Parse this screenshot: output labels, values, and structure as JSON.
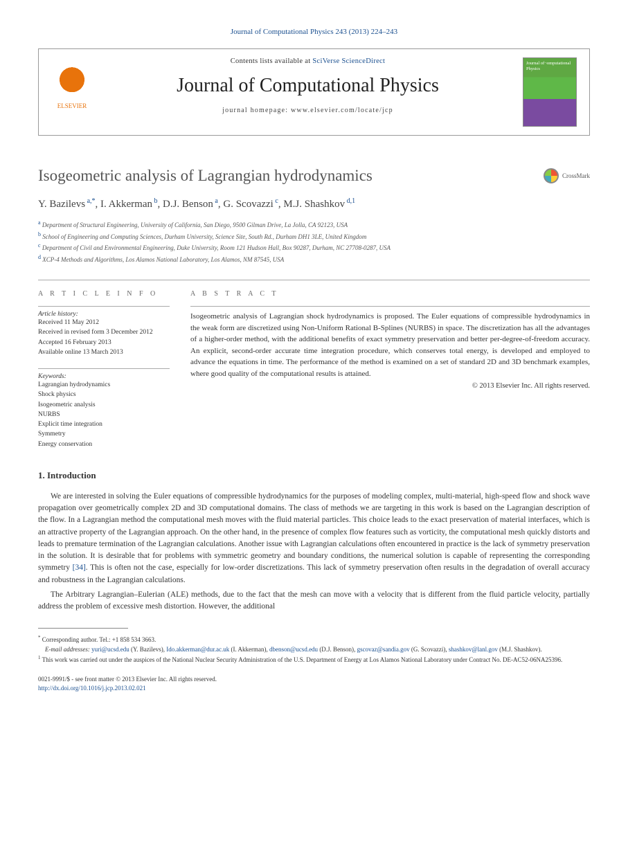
{
  "journal_ref": "Journal of Computational Physics 243 (2013) 224–243",
  "header": {
    "contents_prefix": "Contents lists available at ",
    "contents_link": "SciVerse ScienceDirect",
    "journal_title": "Journal of Computational Physics",
    "homepage_prefix": "journal homepage: ",
    "homepage_url": "www.elsevier.com/locate/jcp",
    "elsevier_label": "ELSEVIER"
  },
  "title": "Isogeometric analysis of Lagrangian hydrodynamics",
  "crossmark_label": "CrossMark",
  "authors_html": "Y. Bazilevs",
  "authors": [
    {
      "name": "Y. Bazilevs",
      "sup": "a,*"
    },
    {
      "name": "I. Akkerman",
      "sup": "b"
    },
    {
      "name": "D.J. Benson",
      "sup": "a"
    },
    {
      "name": "G. Scovazzi",
      "sup": "c"
    },
    {
      "name": "M.J. Shashkov",
      "sup": "d,1"
    }
  ],
  "affiliations": [
    {
      "sup": "a",
      "text": "Department of Structural Engineering, University of California, San Diego, 9500 Gilman Drive, La Jolla, CA 92123, USA"
    },
    {
      "sup": "b",
      "text": "School of Engineering and Computing Sciences, Durham University, Science Site, South Rd., Durham DH1 3LE, United Kingdom"
    },
    {
      "sup": "c",
      "text": "Department of Civil and Environmental Engineering, Duke University, Room 121 Hudson Hall, Box 90287, Durham, NC 27708-0287, USA"
    },
    {
      "sup": "d",
      "text": "XCP-4 Methods and Algorithms, Los Alamos National Laboratory, Los Alamos, NM 87545, USA"
    }
  ],
  "info": {
    "heading": "a r t i c l e   i n f o",
    "history_label": "Article history:",
    "history": [
      "Received 11 May 2012",
      "Received in revised form 3 December 2012",
      "Accepted 16 February 2013",
      "Available online 13 March 2013"
    ],
    "keywords_label": "Keywords:",
    "keywords": [
      "Lagrangian hydrodynamics",
      "Shock physics",
      "Isogeometric analysis",
      "NURBS",
      "Explicit time integration",
      "Symmetry",
      "Energy conservation"
    ]
  },
  "abstract": {
    "heading": "a b s t r a c t",
    "text": "Isogeometric analysis of Lagrangian shock hydrodynamics is proposed. The Euler equations of compressible hydrodynamics in the weak form are discretized using Non-Uniform Rational B-Splines (NURBS) in space. The discretization has all the advantages of a higher-order method, with the additional benefits of exact symmetry preservation and better per-degree-of-freedom accuracy. An explicit, second-order accurate time integration procedure, which conserves total energy, is developed and employed to advance the equations in time. The performance of the method is examined on a set of standard 2D and 3D benchmark examples, where good quality of the computational results is attained.",
    "copyright": "© 2013 Elsevier Inc. All rights reserved."
  },
  "intro": {
    "heading": "1. Introduction",
    "p1": "We are interested in solving the Euler equations of compressible hydrodynamics for the purposes of modeling complex, multi-material, high-speed flow and shock wave propagation over geometrically complex 2D and 3D computational domains. The class of methods we are targeting in this work is based on the Lagrangian description of the flow. In a Lagrangian method the computational mesh moves with the fluid material particles. This choice leads to the exact preservation of material interfaces, which is an attractive property of the Lagrangian approach. On the other hand, in the presence of complex flow features such as vorticity, the computational mesh quickly distorts and leads to premature termination of the Lagrangian calculations. Another issue with Lagrangian calculations often encountered in practice is the lack of symmetry preservation in the solution. It is desirable that for problems with symmetric geometry and boundary conditions, the numerical solution is capable of representing the corresponding symmetry ",
    "p1_ref": "[34]",
    "p1_tail": ". This is often not the case, especially for low-order discretizations. This lack of symmetry preservation often results in the degradation of overall accuracy and robustness in the Lagrangian calculations.",
    "p2": "The Arbitrary Lagrangian–Eulerian (ALE) methods, due to the fact that the mesh can move with a velocity that is different from the fluid particle velocity, partially address the problem of excessive mesh distortion. However, the additional"
  },
  "footnotes": {
    "corr_sup": "*",
    "corr": "Corresponding author. Tel.: +1 858 534 3663.",
    "email_label": "E-mail addresses: ",
    "emails": [
      {
        "addr": "yuri@ucsd.edu",
        "who": "(Y. Bazilevs)"
      },
      {
        "addr": "Ido.akkerman@dur.ac.uk",
        "who": "(I. Akkerman)"
      },
      {
        "addr": "dbenson@ucsd.edu",
        "who": "(D.J. Benson)"
      },
      {
        "addr": "gscovaz@sandia.gov",
        "who": "(G. Scovazzi)"
      },
      {
        "addr": "shashkov@lanl.gov",
        "who": "(M.J. Shashkov)."
      }
    ],
    "note1_sup": "1",
    "note1": "This work was carried out under the auspices of the National Nuclear Security Administration of the U.S. Department of Energy at Los Alamos National Laboratory under Contract No. DE-AC52-06NA25396."
  },
  "doi": {
    "line1": "0021-9991/$ - see front matter © 2013 Elsevier Inc. All rights reserved.",
    "link": "http://dx.doi.org/10.1016/j.jcp.2013.02.021"
  },
  "colors": {
    "link": "#1a4f8f",
    "orange": "#e8730b"
  }
}
